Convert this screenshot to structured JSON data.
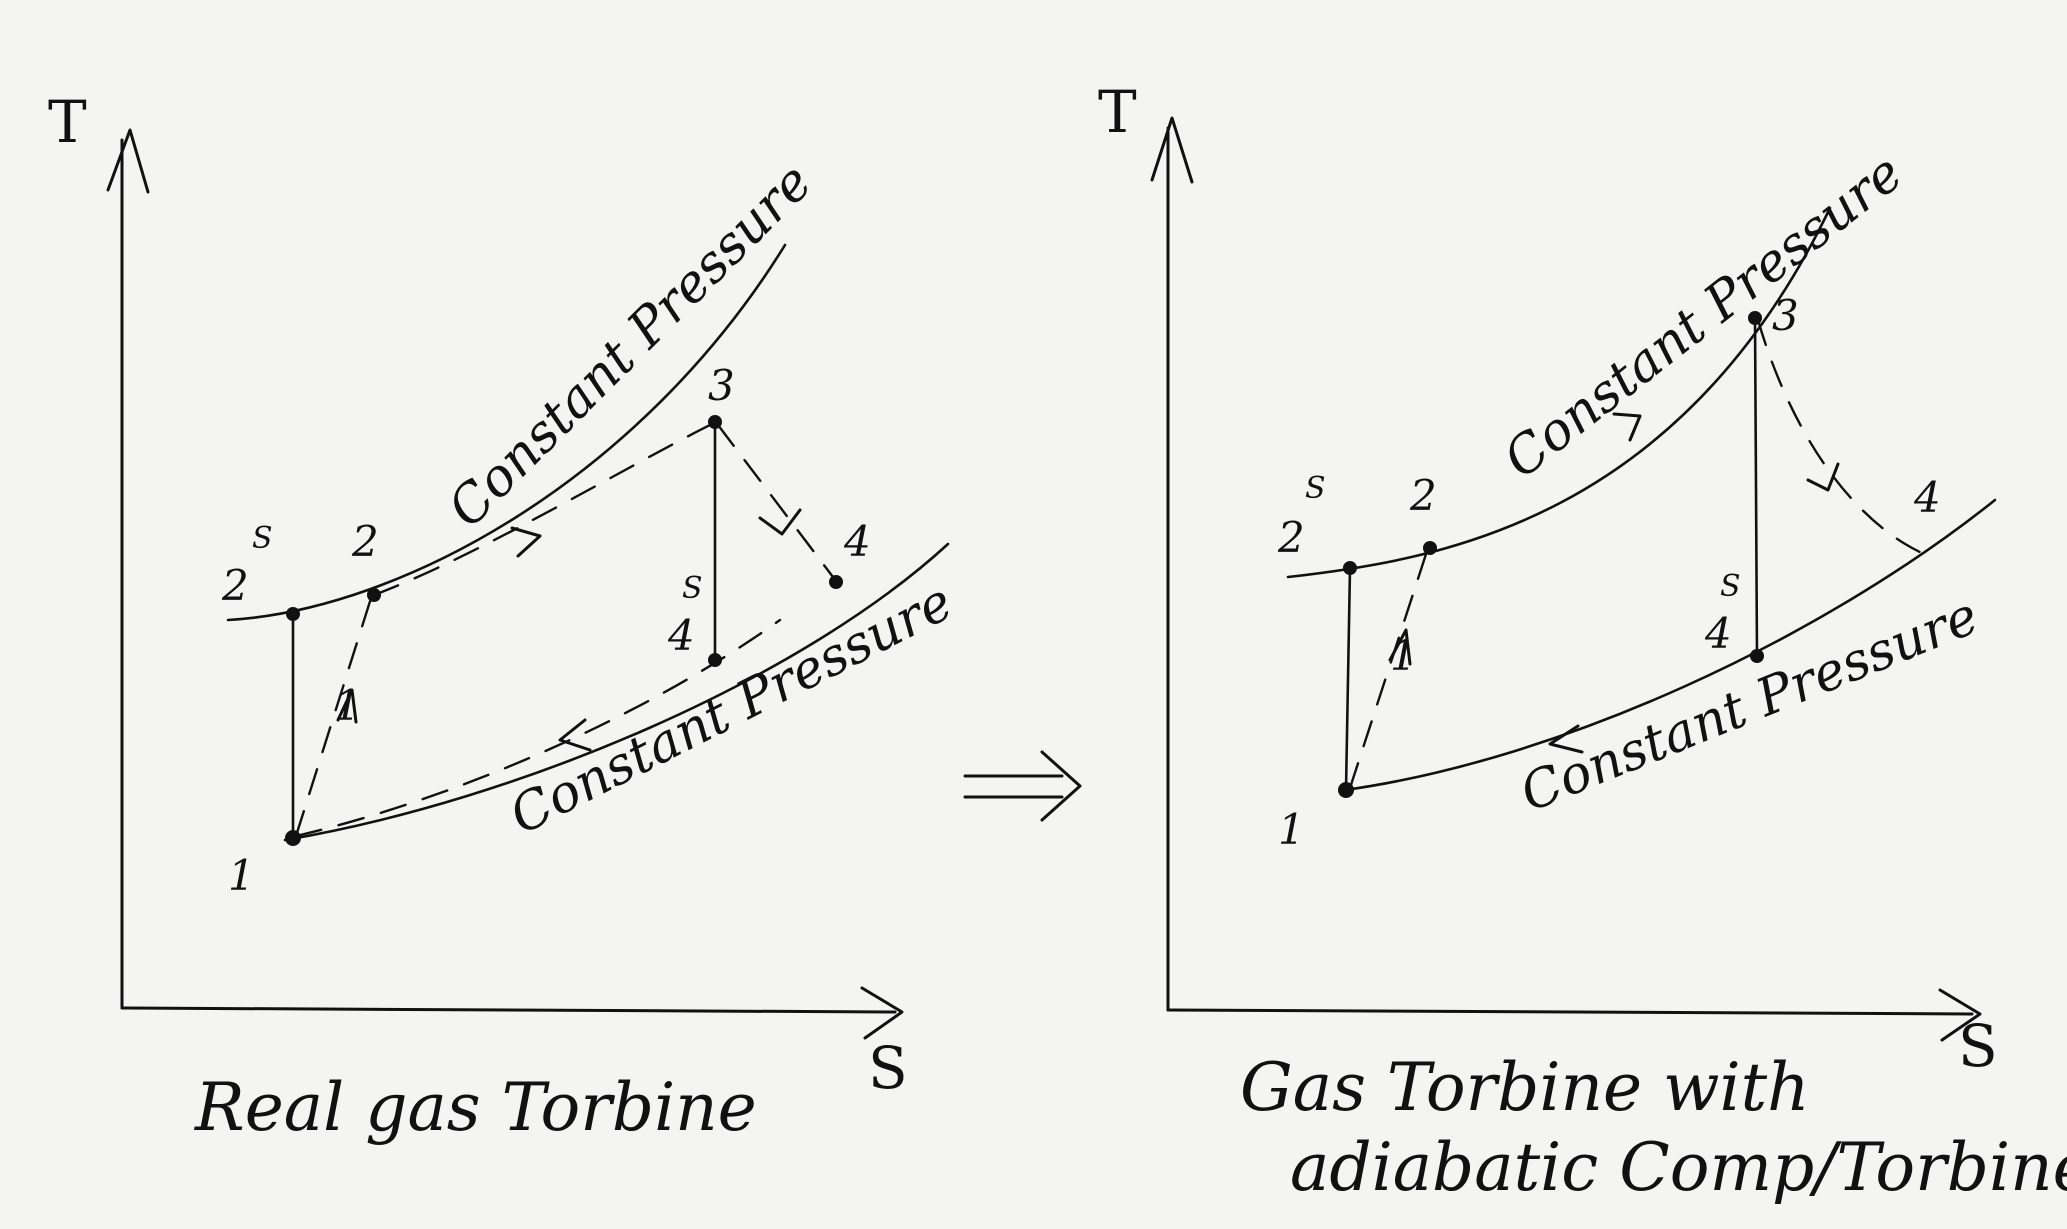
{
  "left_diagram": {
    "axis_y": "T",
    "axis_x": "S",
    "labels": {
      "p2s": "2",
      "p2s_sup": "S",
      "p2": "2",
      "p3": "3",
      "p4": "4",
      "p4s": "4",
      "p4s_sup": "S",
      "p1": "1",
      "path_12": "1"
    },
    "upper_curve": "Constant Pressure",
    "lower_curve": "Constant Pressure",
    "caption": "Real gas Torbine"
  },
  "implies_arrow": "⟹",
  "right_diagram": {
    "axis_y": "T",
    "axis_x": "S",
    "labels": {
      "p2s": "2",
      "p2s_sup": "S",
      "p2": "2",
      "p3": "3",
      "p4": "4",
      "p4s": "4",
      "p4s_sup": "S",
      "p1": "1",
      "path_12": "1"
    },
    "upper_curve": "Constant Pressure",
    "lower_curve": "Constant Pressure",
    "caption_line1": "Gas Torbine with",
    "caption_line2": "adiabatic Comp/Torbine"
  }
}
